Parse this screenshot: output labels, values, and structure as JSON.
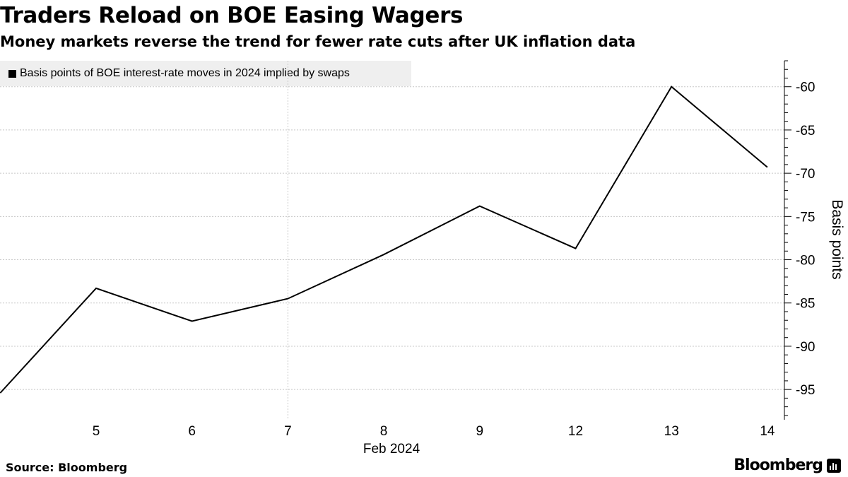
{
  "header": {
    "title": "Traders Reload on BOE Easing Wagers",
    "subtitle": "Money markets reverse the trend for fewer rate cuts after UK inflation data"
  },
  "footer": {
    "source": "Source: Bloomberg",
    "brand": "Bloomberg"
  },
  "chart_data": {
    "type": "line",
    "x_period_label": "Feb 2024",
    "ylabel": "Basis points",
    "legend_position": "top-left",
    "grid": true,
    "x_ticks": [
      "5",
      "6",
      "7",
      "8",
      "9",
      "12",
      "13",
      "14"
    ],
    "yticks": [
      -60,
      -65,
      -70,
      -75,
      -80,
      -85,
      -90,
      -95
    ],
    "ylim": [
      -98.5,
      -57
    ],
    "series": [
      {
        "name": "Basis points of BOE interest-rate moves in 2024 implied by swaps",
        "color": "#000000",
        "points": [
          {
            "x": "Feb 2",
            "y": -95.4
          },
          {
            "x": "Feb 5",
            "y": -83.3
          },
          {
            "x": "Feb 6",
            "y": -87.1
          },
          {
            "x": "Feb 7",
            "y": -84.5
          },
          {
            "x": "Feb 8",
            "y": -79.4
          },
          {
            "x": "Feb 9",
            "y": -73.8
          },
          {
            "x": "Feb 12",
            "y": -78.7
          },
          {
            "x": "Feb 13",
            "y": -60.0
          },
          {
            "x": "Feb 14",
            "y": -69.3
          }
        ]
      }
    ]
  }
}
